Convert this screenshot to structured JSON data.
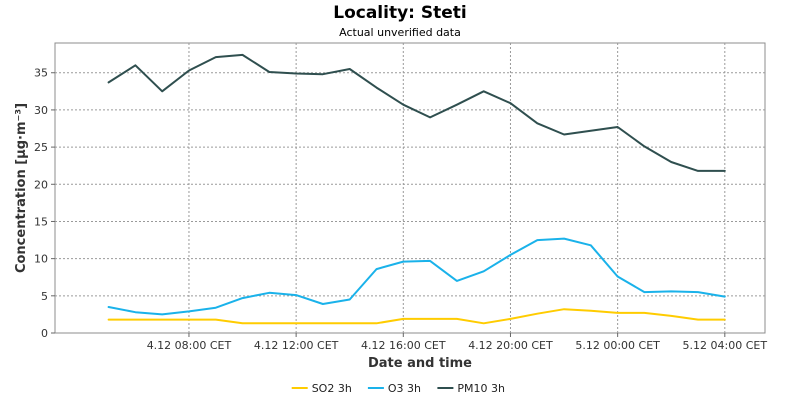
{
  "chart_data": {
    "type": "line",
    "title": "Locality: Steti",
    "subtitle": "Actual unverified data",
    "xlabel": "Date and time",
    "ylabel": "Concentration [µg·m⁻³]",
    "ylim": [
      0,
      39
    ],
    "yticks": [
      0,
      5,
      10,
      15,
      20,
      25,
      30,
      35
    ],
    "x_start_hour": 5,
    "x_step_hours": 1,
    "x_end_hour": 29,
    "xticks": [
      {
        "hour": 8,
        "label": "4.12 08:00 CET"
      },
      {
        "hour": 12,
        "label": "4.12 12:00 CET"
      },
      {
        "hour": 16,
        "label": "4.12 16:00 CET"
      },
      {
        "hour": 20,
        "label": "4.12 20:00 CET"
      },
      {
        "hour": 24,
        "label": "5.12 00:00 CET"
      },
      {
        "hour": 28,
        "label": "5.12 04:00 CET"
      }
    ],
    "grid": true,
    "legend_position": "bottom",
    "series": [
      {
        "name": "SO2 3h",
        "color": "#ffcc00",
        "values": [
          1.8,
          1.8,
          1.8,
          1.8,
          1.8,
          1.3,
          1.3,
          1.3,
          1.3,
          1.3,
          1.3,
          1.9,
          1.9,
          1.9,
          1.3,
          1.9,
          2.6,
          3.2,
          3.0,
          2.7,
          2.7,
          2.3,
          1.8,
          1.8
        ]
      },
      {
        "name": "O3 3h",
        "color": "#1ab2ea",
        "values": [
          3.5,
          2.8,
          2.5,
          2.9,
          3.4,
          4.7,
          5.4,
          5.1,
          3.9,
          4.5,
          8.6,
          9.6,
          9.7,
          7.0,
          8.3,
          10.5,
          12.5,
          12.7,
          11.8,
          7.6,
          5.5,
          5.6,
          5.5,
          4.9
        ]
      },
      {
        "name": "PM10 3h",
        "color": "#2f4f4f",
        "values": [
          33.7,
          36.0,
          32.5,
          35.3,
          37.1,
          37.4,
          35.1,
          34.9,
          34.8,
          35.5,
          33.0,
          30.7,
          29.0,
          30.7,
          32.5,
          30.9,
          28.2,
          26.7,
          27.2,
          27.7,
          25.1,
          23.0,
          21.8,
          21.8
        ]
      }
    ]
  }
}
